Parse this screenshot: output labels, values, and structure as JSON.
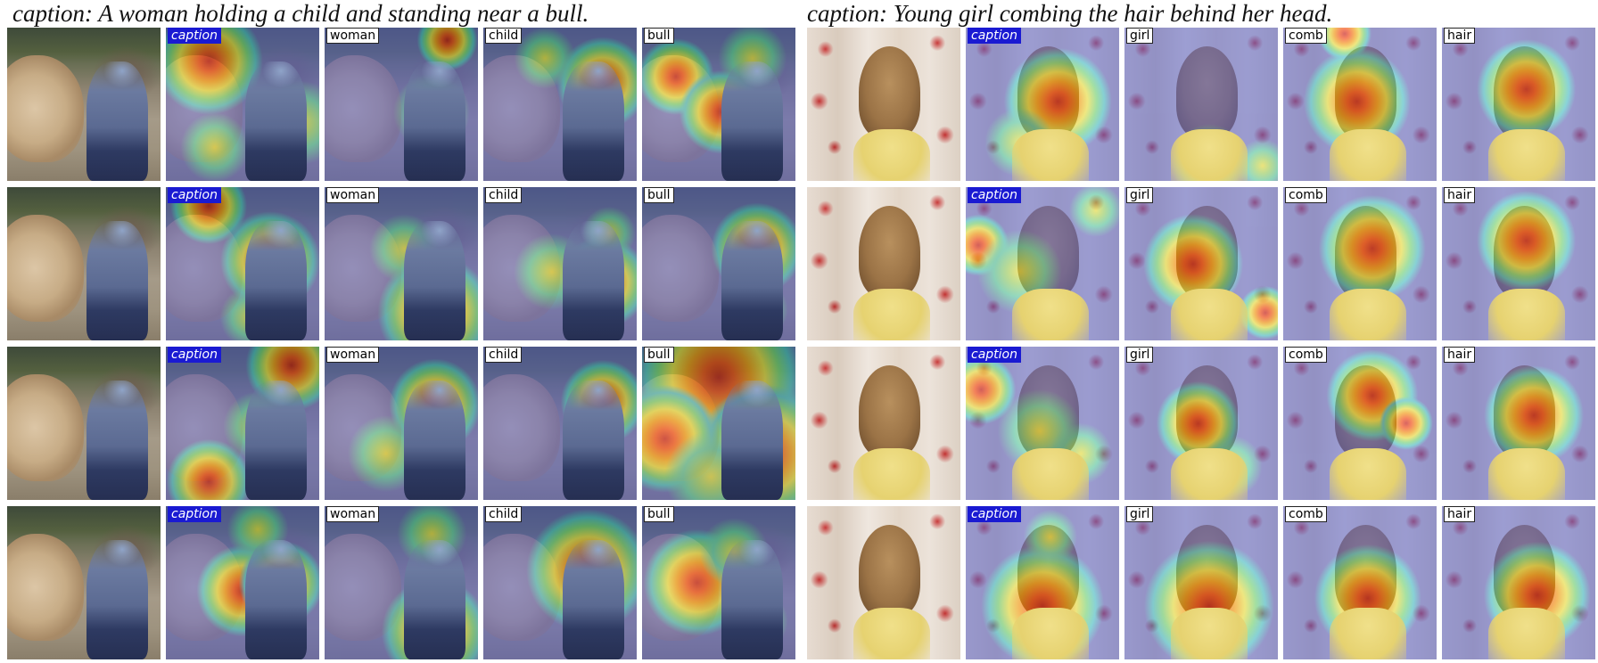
{
  "panels": [
    {
      "caption": "caption: A woman holding a child and standing near a bull.",
      "scene": "bull",
      "rows": [
        [
          {
            "label": ""
          },
          {
            "label": "caption",
            "blobs": [
              {
                "x": 28,
                "y": 22,
                "s": 70
              },
              {
                "x": 88,
                "y": 62,
                "s": 55,
                "w": true
              },
              {
                "x": 32,
                "y": 78,
                "s": 45,
                "w": true
              }
            ]
          },
          {
            "label": "woman",
            "blobs": [
              {
                "x": 80,
                "y": 8,
                "s": 40
              },
              {
                "x": 70,
                "y": 55,
                "s": 50,
                "w": true
              }
            ]
          },
          {
            "label": "child",
            "blobs": [
              {
                "x": 78,
                "y": 36,
                "s": 60
              },
              {
                "x": 40,
                "y": 20,
                "s": 40,
                "w": true
              }
            ]
          },
          {
            "label": "bull",
            "blobs": [
              {
                "x": 22,
                "y": 32,
                "s": 50
              },
              {
                "x": 52,
                "y": 55,
                "s": 55
              },
              {
                "x": 72,
                "y": 20,
                "s": 45,
                "w": true
              }
            ]
          }
        ],
        [
          {
            "label": ""
          },
          {
            "label": "caption",
            "blobs": [
              {
                "x": 28,
                "y": 12,
                "s": 50
              },
              {
                "x": 68,
                "y": 48,
                "s": 65
              },
              {
                "x": 55,
                "y": 85,
                "s": 40,
                "w": true
              }
            ]
          },
          {
            "label": "woman",
            "blobs": [
              {
                "x": 72,
                "y": 82,
                "s": 75
              },
              {
                "x": 52,
                "y": 40,
                "s": 45,
                "w": true
              }
            ]
          },
          {
            "label": "child",
            "blobs": [
              {
                "x": 78,
                "y": 62,
                "s": 60
              },
              {
                "x": 45,
                "y": 55,
                "s": 50,
                "w": true
              },
              {
                "x": 82,
                "y": 30,
                "s": 35,
                "w": true
              }
            ]
          },
          {
            "label": "bull",
            "blobs": [
              {
                "x": 75,
                "y": 40,
                "s": 60
              },
              {
                "x": 75,
                "y": 80,
                "s": 40,
                "w": true
              }
            ]
          }
        ],
        [
          {
            "label": ""
          },
          {
            "label": "caption",
            "blobs": [
              {
                "x": 82,
                "y": 12,
                "s": 60
              },
              {
                "x": 28,
                "y": 88,
                "s": 55
              },
              {
                "x": 60,
                "y": 52,
                "s": 45,
                "w": true
              }
            ]
          },
          {
            "label": "woman",
            "blobs": [
              {
                "x": 72,
                "y": 38,
                "s": 60
              },
              {
                "x": 40,
                "y": 70,
                "s": 50,
                "w": true
              }
            ]
          },
          {
            "label": "child",
            "blobs": [
              {
                "x": 78,
                "y": 36,
                "s": 55
              },
              {
                "x": 75,
                "y": 78,
                "s": 35,
                "w": true
              }
            ]
          },
          {
            "label": "bull",
            "blobs": [
              {
                "x": 50,
                "y": 20,
                "s": 110
              },
              {
                "x": 80,
                "y": 70,
                "s": 90
              },
              {
                "x": 15,
                "y": 60,
                "s": 70
              },
              {
                "x": 45,
                "y": 85,
                "s": 60,
                "w": true
              }
            ]
          }
        ],
        [
          {
            "label": ""
          },
          {
            "label": "caption",
            "blobs": [
              {
                "x": 50,
                "y": 55,
                "s": 60
              },
              {
                "x": 75,
                "y": 50,
                "s": 55
              },
              {
                "x": 60,
                "y": 15,
                "s": 40,
                "w": true
              }
            ]
          },
          {
            "label": "woman",
            "blobs": [
              {
                "x": 72,
                "y": 82,
                "s": 70
              },
              {
                "x": 70,
                "y": 18,
                "s": 45,
                "w": true
              }
            ]
          },
          {
            "label": "child",
            "blobs": [
              {
                "x": 68,
                "y": 42,
                "s": 80
              }
            ]
          },
          {
            "label": "bull",
            "blobs": [
              {
                "x": 36,
                "y": 50,
                "s": 70
              },
              {
                "x": 60,
                "y": 30,
                "s": 45,
                "w": true
              },
              {
                "x": 75,
                "y": 75,
                "s": 40,
                "w": true
              }
            ]
          }
        ]
      ]
    },
    {
      "caption": "caption: Young girl combing the hair behind her head.",
      "scene": "girl",
      "rows": [
        [
          {
            "label": ""
          },
          {
            "label": "caption",
            "blobs": [
              {
                "x": 60,
                "y": 48,
                "s": 70
              },
              {
                "x": 35,
                "y": 75,
                "s": 45,
                "w": true
              }
            ]
          },
          {
            "label": "girl",
            "blobs": [
              {
                "x": 55,
                "y": 88,
                "s": 50,
                "w": true
              },
              {
                "x": 90,
                "y": 90,
                "s": 35,
                "w": true
              }
            ]
          },
          {
            "label": "comb",
            "blobs": [
              {
                "x": 48,
                "y": 48,
                "s": 70
              },
              {
                "x": 40,
                "y": 4,
                "s": 35
              }
            ]
          },
          {
            "label": "hair",
            "blobs": [
              {
                "x": 55,
                "y": 40,
                "s": 65
              }
            ]
          }
        ],
        [
          {
            "label": ""
          },
          {
            "label": "caption",
            "blobs": [
              {
                "x": 8,
                "y": 38,
                "s": 40
              },
              {
                "x": 35,
                "y": 55,
                "s": 55,
                "w": true
              },
              {
                "x": 85,
                "y": 15,
                "s": 35,
                "w": true
              }
            ]
          },
          {
            "label": "girl",
            "blobs": [
              {
                "x": 45,
                "y": 50,
                "s": 65
              },
              {
                "x": 92,
                "y": 82,
                "s": 35
              }
            ]
          },
          {
            "label": "comb",
            "blobs": [
              {
                "x": 58,
                "y": 40,
                "s": 70
              }
            ]
          },
          {
            "label": "hair",
            "blobs": [
              {
                "x": 55,
                "y": 35,
                "s": 65
              }
            ]
          }
        ],
        [
          {
            "label": ""
          },
          {
            "label": "caption",
            "blobs": [
              {
                "x": 10,
                "y": 28,
                "s": 45
              },
              {
                "x": 48,
                "y": 55,
                "s": 55,
                "w": true
              },
              {
                "x": 75,
                "y": 70,
                "s": 40,
                "w": true
              }
            ]
          },
          {
            "label": "girl",
            "blobs": [
              {
                "x": 48,
                "y": 50,
                "s": 55
              },
              {
                "x": 70,
                "y": 78,
                "s": 40,
                "w": true
              }
            ]
          },
          {
            "label": "comb",
            "blobs": [
              {
                "x": 58,
                "y": 32,
                "s": 60
              },
              {
                "x": 80,
                "y": 50,
                "s": 35
              }
            ]
          },
          {
            "label": "hair",
            "blobs": [
              {
                "x": 60,
                "y": 45,
                "s": 65
              }
            ]
          }
        ],
        [
          {
            "label": ""
          },
          {
            "label": "caption",
            "blobs": [
              {
                "x": 50,
                "y": 65,
                "s": 80
              },
              {
                "x": 55,
                "y": 20,
                "s": 35,
                "w": true
              }
            ]
          },
          {
            "label": "girl",
            "blobs": [
              {
                "x": 55,
                "y": 65,
                "s": 85
              }
            ]
          },
          {
            "label": "comb",
            "blobs": [
              {
                "x": 55,
                "y": 60,
                "s": 70
              }
            ]
          },
          {
            "label": "hair",
            "blobs": [
              {
                "x": 62,
                "y": 58,
                "s": 70
              }
            ]
          }
        ]
      ]
    }
  ]
}
